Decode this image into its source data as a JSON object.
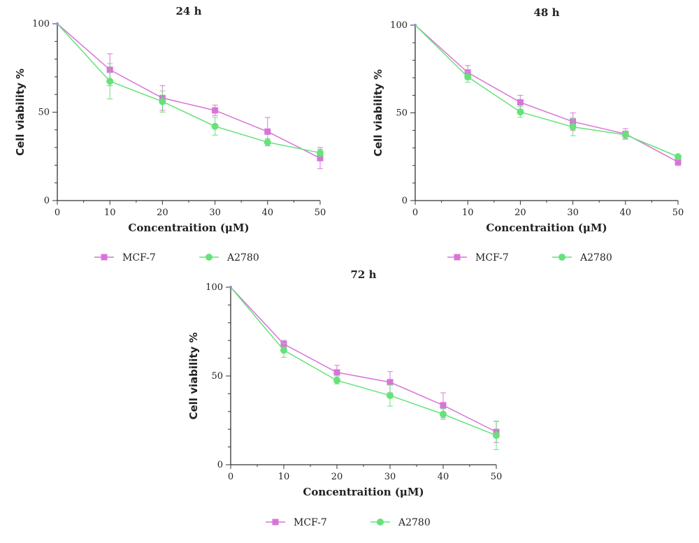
{
  "chart_data": [
    {
      "type": "line",
      "title": "24 h",
      "xlabel": "Concentraition (μM)",
      "ylabel": "Cell viability %",
      "x": [
        0,
        10,
        20,
        30,
        40,
        50
      ],
      "xticks": [
        0,
        10,
        20,
        30,
        40,
        50
      ],
      "yticks": [
        0,
        50,
        100
      ],
      "xlim": [
        0,
        50
      ],
      "ylim": [
        0,
        100
      ],
      "grid": false,
      "legend_position": "bottom",
      "series": [
        {
          "name": "MCF-7",
          "color": "#d874d8",
          "marker": "square",
          "values": [
            100,
            74,
            58,
            51,
            39,
            24
          ],
          "errors": [
            0,
            9,
            7,
            3,
            8,
            6
          ]
        },
        {
          "name": "A2780",
          "color": "#66e27a",
          "marker": "circle",
          "values": [
            100,
            67.5,
            56,
            42,
            33,
            27
          ],
          "errors": [
            0,
            10,
            6,
            5,
            2,
            2
          ]
        }
      ]
    },
    {
      "type": "line",
      "title": "48 h",
      "xlabel": "Concentraition (μM)",
      "ylabel": "Cell viability %",
      "x": [
        0,
        10,
        20,
        30,
        40,
        50
      ],
      "xticks": [
        0,
        10,
        20,
        30,
        40,
        50
      ],
      "yticks": [
        0,
        50,
        100
      ],
      "xlim": [
        0,
        50
      ],
      "ylim": [
        0,
        100
      ],
      "grid": false,
      "legend_position": "bottom",
      "series": [
        {
          "name": "MCF-7",
          "color": "#d874d8",
          "marker": "square",
          "values": [
            100,
            73,
            56,
            45,
            38,
            22
          ],
          "errors": [
            0,
            4,
            4,
            5,
            3,
            2
          ]
        },
        {
          "name": "A2780",
          "color": "#66e27a",
          "marker": "circle",
          "values": [
            100,
            70.5,
            50.5,
            42,
            37.5,
            25
          ],
          "errors": [
            0,
            3,
            3,
            5,
            2,
            1
          ]
        }
      ]
    },
    {
      "type": "line",
      "title": "72 h",
      "xlabel": "Concentraition (μM)",
      "ylabel": "Cell viability %",
      "x": [
        0,
        10,
        20,
        30,
        40,
        50
      ],
      "xticks": [
        0,
        10,
        20,
        30,
        40,
        50
      ],
      "yticks": [
        0,
        50,
        100
      ],
      "xlim": [
        0,
        50
      ],
      "ylim": [
        0,
        100
      ],
      "grid": false,
      "legend_position": "bottom",
      "series": [
        {
          "name": "MCF-7",
          "color": "#d874d8",
          "marker": "square",
          "values": [
            100,
            68,
            52,
            46.5,
            33.5,
            18.5
          ],
          "errors": [
            0,
            2,
            4,
            6,
            7,
            6
          ]
        },
        {
          "name": "A2780",
          "color": "#66e27a",
          "marker": "circle",
          "values": [
            100,
            64.5,
            47.5,
            39,
            28.5,
            16.5
          ],
          "errors": [
            0,
            4,
            2,
            6,
            3,
            8
          ]
        }
      ]
    }
  ]
}
